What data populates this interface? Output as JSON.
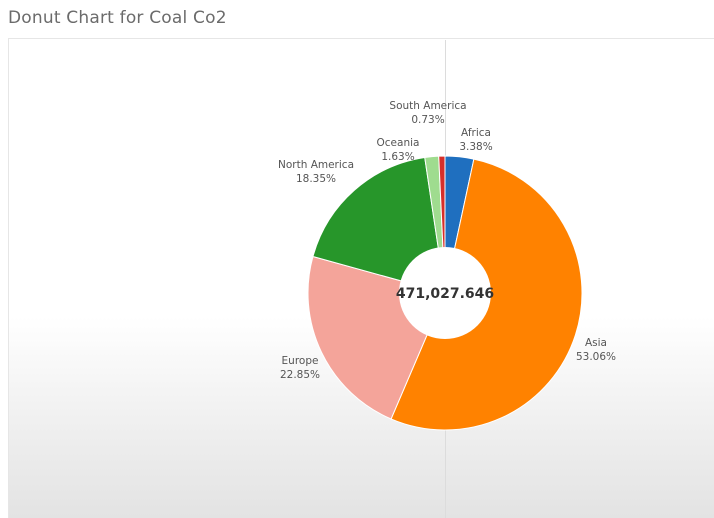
{
  "page": {
    "title": "Donut Chart for Coal Co2"
  },
  "chart_data": {
    "type": "pie",
    "donut": true,
    "title": "Donut Chart for Coal Co2",
    "center_label": "471,027.646",
    "slices": [
      {
        "name": "Africa",
        "value": 3.38,
        "label": "3.38%",
        "color": "#1f6fbf"
      },
      {
        "name": "Asia",
        "value": 53.06,
        "label": "53.06%",
        "color": "#ff8200"
      },
      {
        "name": "Europe",
        "value": 22.85,
        "label": "22.85%",
        "color": "#f4a49a"
      },
      {
        "name": "North America",
        "value": 18.35,
        "label": "18.35%",
        "color": "#27962a"
      },
      {
        "name": "Oceania",
        "value": 1.63,
        "label": "1.63%",
        "color": "#9fdc8f"
      },
      {
        "name": "South America",
        "value": 0.73,
        "label": "0.73%",
        "color": "#d62f2a"
      }
    ]
  }
}
